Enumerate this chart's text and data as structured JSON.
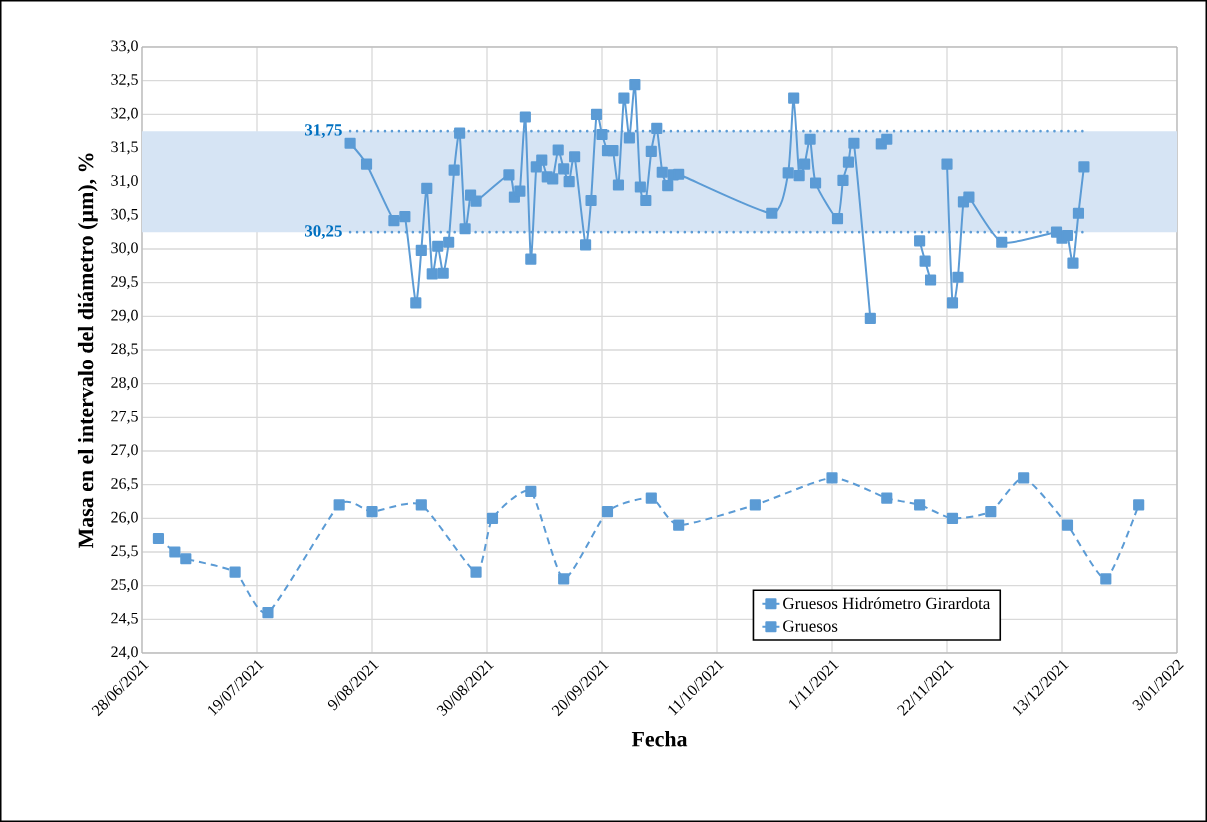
{
  "chart_data": {
    "type": "line",
    "xlabel": "Fecha",
    "ylabel": "Masa en el intervalo del diámetro (µm), %",
    "xlim": [
      "2021-06-28",
      "2022-01-03"
    ],
    "ylim": [
      24,
      33
    ],
    "xticks": [
      {
        "value": "2021-06-28",
        "label": "28/06/2021"
      },
      {
        "value": "2021-07-19",
        "label": "19/07/2021"
      },
      {
        "value": "2021-08-09",
        "label": "9/08/2021"
      },
      {
        "value": "2021-08-30",
        "label": "30/08/2021"
      },
      {
        "value": "2021-09-20",
        "label": "20/09/2021"
      },
      {
        "value": "2021-10-11",
        "label": "11/10/2021"
      },
      {
        "value": "2021-11-01",
        "label": "1/11/2021"
      },
      {
        "value": "2021-11-22",
        "label": "22/11/2021"
      },
      {
        "value": "2021-12-13",
        "label": "13/12/2021"
      },
      {
        "value": "2022-01-03",
        "label": "3/01/2022"
      }
    ],
    "yticks": [
      {
        "value": 24,
        "label": "24,0"
      },
      {
        "value": 24.5,
        "label": "24,5"
      },
      {
        "value": 25,
        "label": "25,0"
      },
      {
        "value": 25.5,
        "label": "25,5"
      },
      {
        "value": 26,
        "label": "26,0"
      },
      {
        "value": 26.5,
        "label": "26,5"
      },
      {
        "value": 27,
        "label": "27,0"
      },
      {
        "value": 27.5,
        "label": "27,5"
      },
      {
        "value": 28,
        "label": "28,0"
      },
      {
        "value": 28.5,
        "label": "28,5"
      },
      {
        "value": 29,
        "label": "29,0"
      },
      {
        "value": 29.5,
        "label": "29,5"
      },
      {
        "value": 30,
        "label": "30,0"
      },
      {
        "value": 30.5,
        "label": "30,5"
      },
      {
        "value": 31,
        "label": "31,0"
      },
      {
        "value": 31.5,
        "label": "31,5"
      },
      {
        "value": 32,
        "label": "32,0"
      },
      {
        "value": 32.5,
        "label": "32,5"
      },
      {
        "value": 33,
        "label": "33,0"
      }
    ],
    "grid": true,
    "legend": "bottom right",
    "marker": "square",
    "bands": [
      {
        "axis": "y",
        "from": 30.25,
        "to": 31.75,
        "color": "#d6e4f4"
      }
    ],
    "ref_lines": [
      {
        "axis": "y",
        "value": 31.75,
        "label": "31,75",
        "color": "#5b9bd5",
        "line_style": "dotted"
      },
      {
        "axis": "y",
        "value": 30.25,
        "label": "30,25",
        "color": "#5b9bd5",
        "line_style": "dotted"
      }
    ],
    "series": [
      {
        "name": "Gruesos Hidrómetro Girardota",
        "color": "#5b9bd5",
        "line_style": "solid",
        "x": [
          "2021-08-05",
          "2021-08-08",
          "2021-08-13",
          "2021-08-15",
          "2021-08-17",
          "2021-08-18",
          "2021-08-19",
          "2021-08-20",
          "2021-08-21",
          "2021-08-22",
          "2021-08-23",
          "2021-08-24",
          "2021-08-25",
          "2021-08-26",
          "2021-08-27",
          "2021-08-28",
          "2021-09-03",
          "2021-09-04",
          "2021-09-05",
          "2021-09-06",
          "2021-09-07",
          "2021-09-08",
          "2021-09-09",
          "2021-09-10",
          "2021-09-11",
          "2021-09-12",
          "2021-09-13",
          "2021-09-14",
          "2021-09-15",
          "2021-09-17",
          "2021-09-18",
          "2021-09-19",
          "2021-09-20",
          "2021-09-21",
          "2021-09-22",
          "2021-09-23",
          "2021-09-24",
          "2021-09-25",
          "2021-09-26",
          "2021-09-27",
          "2021-09-28",
          "2021-09-29",
          "2021-09-30",
          "2021-10-01",
          "2021-10-02",
          "2021-10-03",
          "2021-10-04",
          "2021-10-21",
          "2021-10-24",
          "2021-10-25",
          "2021-10-26",
          "2021-10-27",
          "2021-10-28",
          "2021-10-29",
          "2021-11-02",
          "2021-11-03",
          "2021-11-04",
          "2021-11-05",
          "2021-11-08",
          "2021-11-09",
          "2021-11-10",
          "2021-11-11",
          "2021-11-14",
          "2021-11-17",
          "2021-11-18",
          "2021-11-19",
          "2021-11-21",
          "2021-11-22",
          "2021-11-23",
          "2021-11-24",
          "2021-11-25",
          "2021-11-26",
          "2021-12-02",
          "2021-12-12",
          "2021-12-13",
          "2021-12-14",
          "2021-12-15",
          "2021-12-16",
          "2021-12-17"
        ],
        "values": [
          31.57,
          31.26,
          30.42,
          30.48,
          29.2,
          29.98,
          30.9,
          29.63,
          30.04,
          29.64,
          30.1,
          31.17,
          31.72,
          30.3,
          30.8,
          30.71,
          31.1,
          30.77,
          30.86,
          31.96,
          29.85,
          31.22,
          31.32,
          31.07,
          31.04,
          31.47,
          31.19,
          31.0,
          31.37,
          30.06,
          30.72,
          32.0,
          31.7,
          31.46,
          31.46,
          30.95,
          32.24,
          31.65,
          32.44,
          30.92,
          30.72,
          31.45,
          31.79,
          31.14,
          30.94,
          31.1,
          31.11,
          30.53,
          31.13,
          32.24,
          31.09,
          31.26,
          31.63,
          30.98,
          30.45,
          31.02,
          31.29,
          31.57,
          28.97,
          null,
          31.56,
          31.63,
          null,
          30.12,
          29.82,
          29.54,
          null,
          31.26,
          29.2,
          29.58,
          30.7,
          30.77,
          30.1,
          30.25,
          30.16,
          30.2,
          29.79,
          30.53,
          31.22
        ]
      },
      {
        "name": "Gruesos",
        "color": "#5b9bd5",
        "line_style": "dashed",
        "x": [
          "2021-07-01",
          "2021-07-04",
          "2021-07-06",
          "2021-07-15",
          "2021-07-21",
          "2021-08-03",
          "2021-08-09",
          "2021-08-18",
          "2021-08-28",
          "2021-08-31",
          "2021-09-07",
          "2021-09-13",
          "2021-09-21",
          "2021-09-29",
          "2021-10-04",
          "2021-10-18",
          "2021-11-01",
          "2021-11-11",
          "2021-11-17",
          "2021-11-23",
          "2021-11-30",
          "2021-12-06",
          "2021-12-14",
          "2021-12-21",
          "2021-12-27"
        ],
        "values": [
          25.7,
          25.5,
          25.4,
          25.2,
          24.6,
          26.2,
          26.1,
          26.2,
          25.2,
          26.0,
          26.4,
          25.1,
          26.1,
          26.3,
          25.9,
          26.2,
          26.6,
          26.3,
          26.2,
          26.0,
          26.1,
          26.6,
          25.9,
          25.1,
          26.2
        ]
      }
    ]
  }
}
